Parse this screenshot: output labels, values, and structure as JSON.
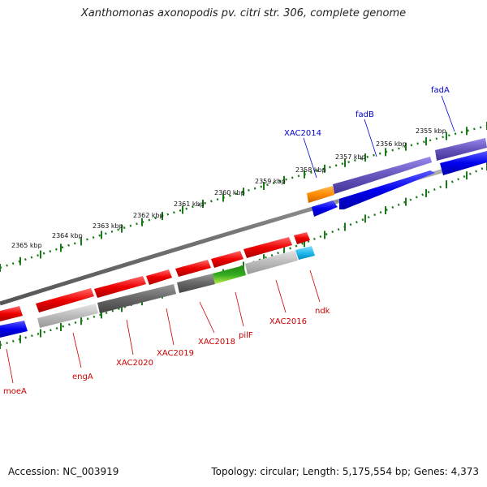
{
  "title": "Xanthomonas axonopodis pv. citri str. 306, complete genome",
  "footer": {
    "accession": "Accession: NC_003919",
    "summary": "Topology: circular; Length: 5,175,554 bp; Genes: 4,373"
  },
  "ruler_labels": [
    "2355 kbp",
    "2356 kbp",
    "2357 kbp",
    "2358 kbp",
    "2359 kbp",
    "2360 kbp",
    "2361 kbp",
    "2362 kbp",
    "2363 kbp",
    "2364 kbp",
    "2365 kbp"
  ],
  "upper_gene_labels": [
    "XAC2014",
    "fadB",
    "fadA"
  ],
  "lower_gene_labels": [
    "ndk",
    "XAC2016",
    "pilF",
    "XAC2018",
    "XAC2019",
    "XAC2020",
    "engA",
    "moeA"
  ],
  "colors": {
    "forward_cds": "#0000ee",
    "reverse_cds": "#ee0000",
    "purple_feature": "#6655bb",
    "orange_feature": "#ff8c00",
    "cyan_feature": "#22bbee",
    "green_feature": "#33aa22",
    "lime_feature": "#aaee33",
    "backbone": "#888888",
    "ruler_ticks": "#1a7a1a",
    "label_blue": "#0000cc",
    "label_red": "#cc0000"
  }
}
